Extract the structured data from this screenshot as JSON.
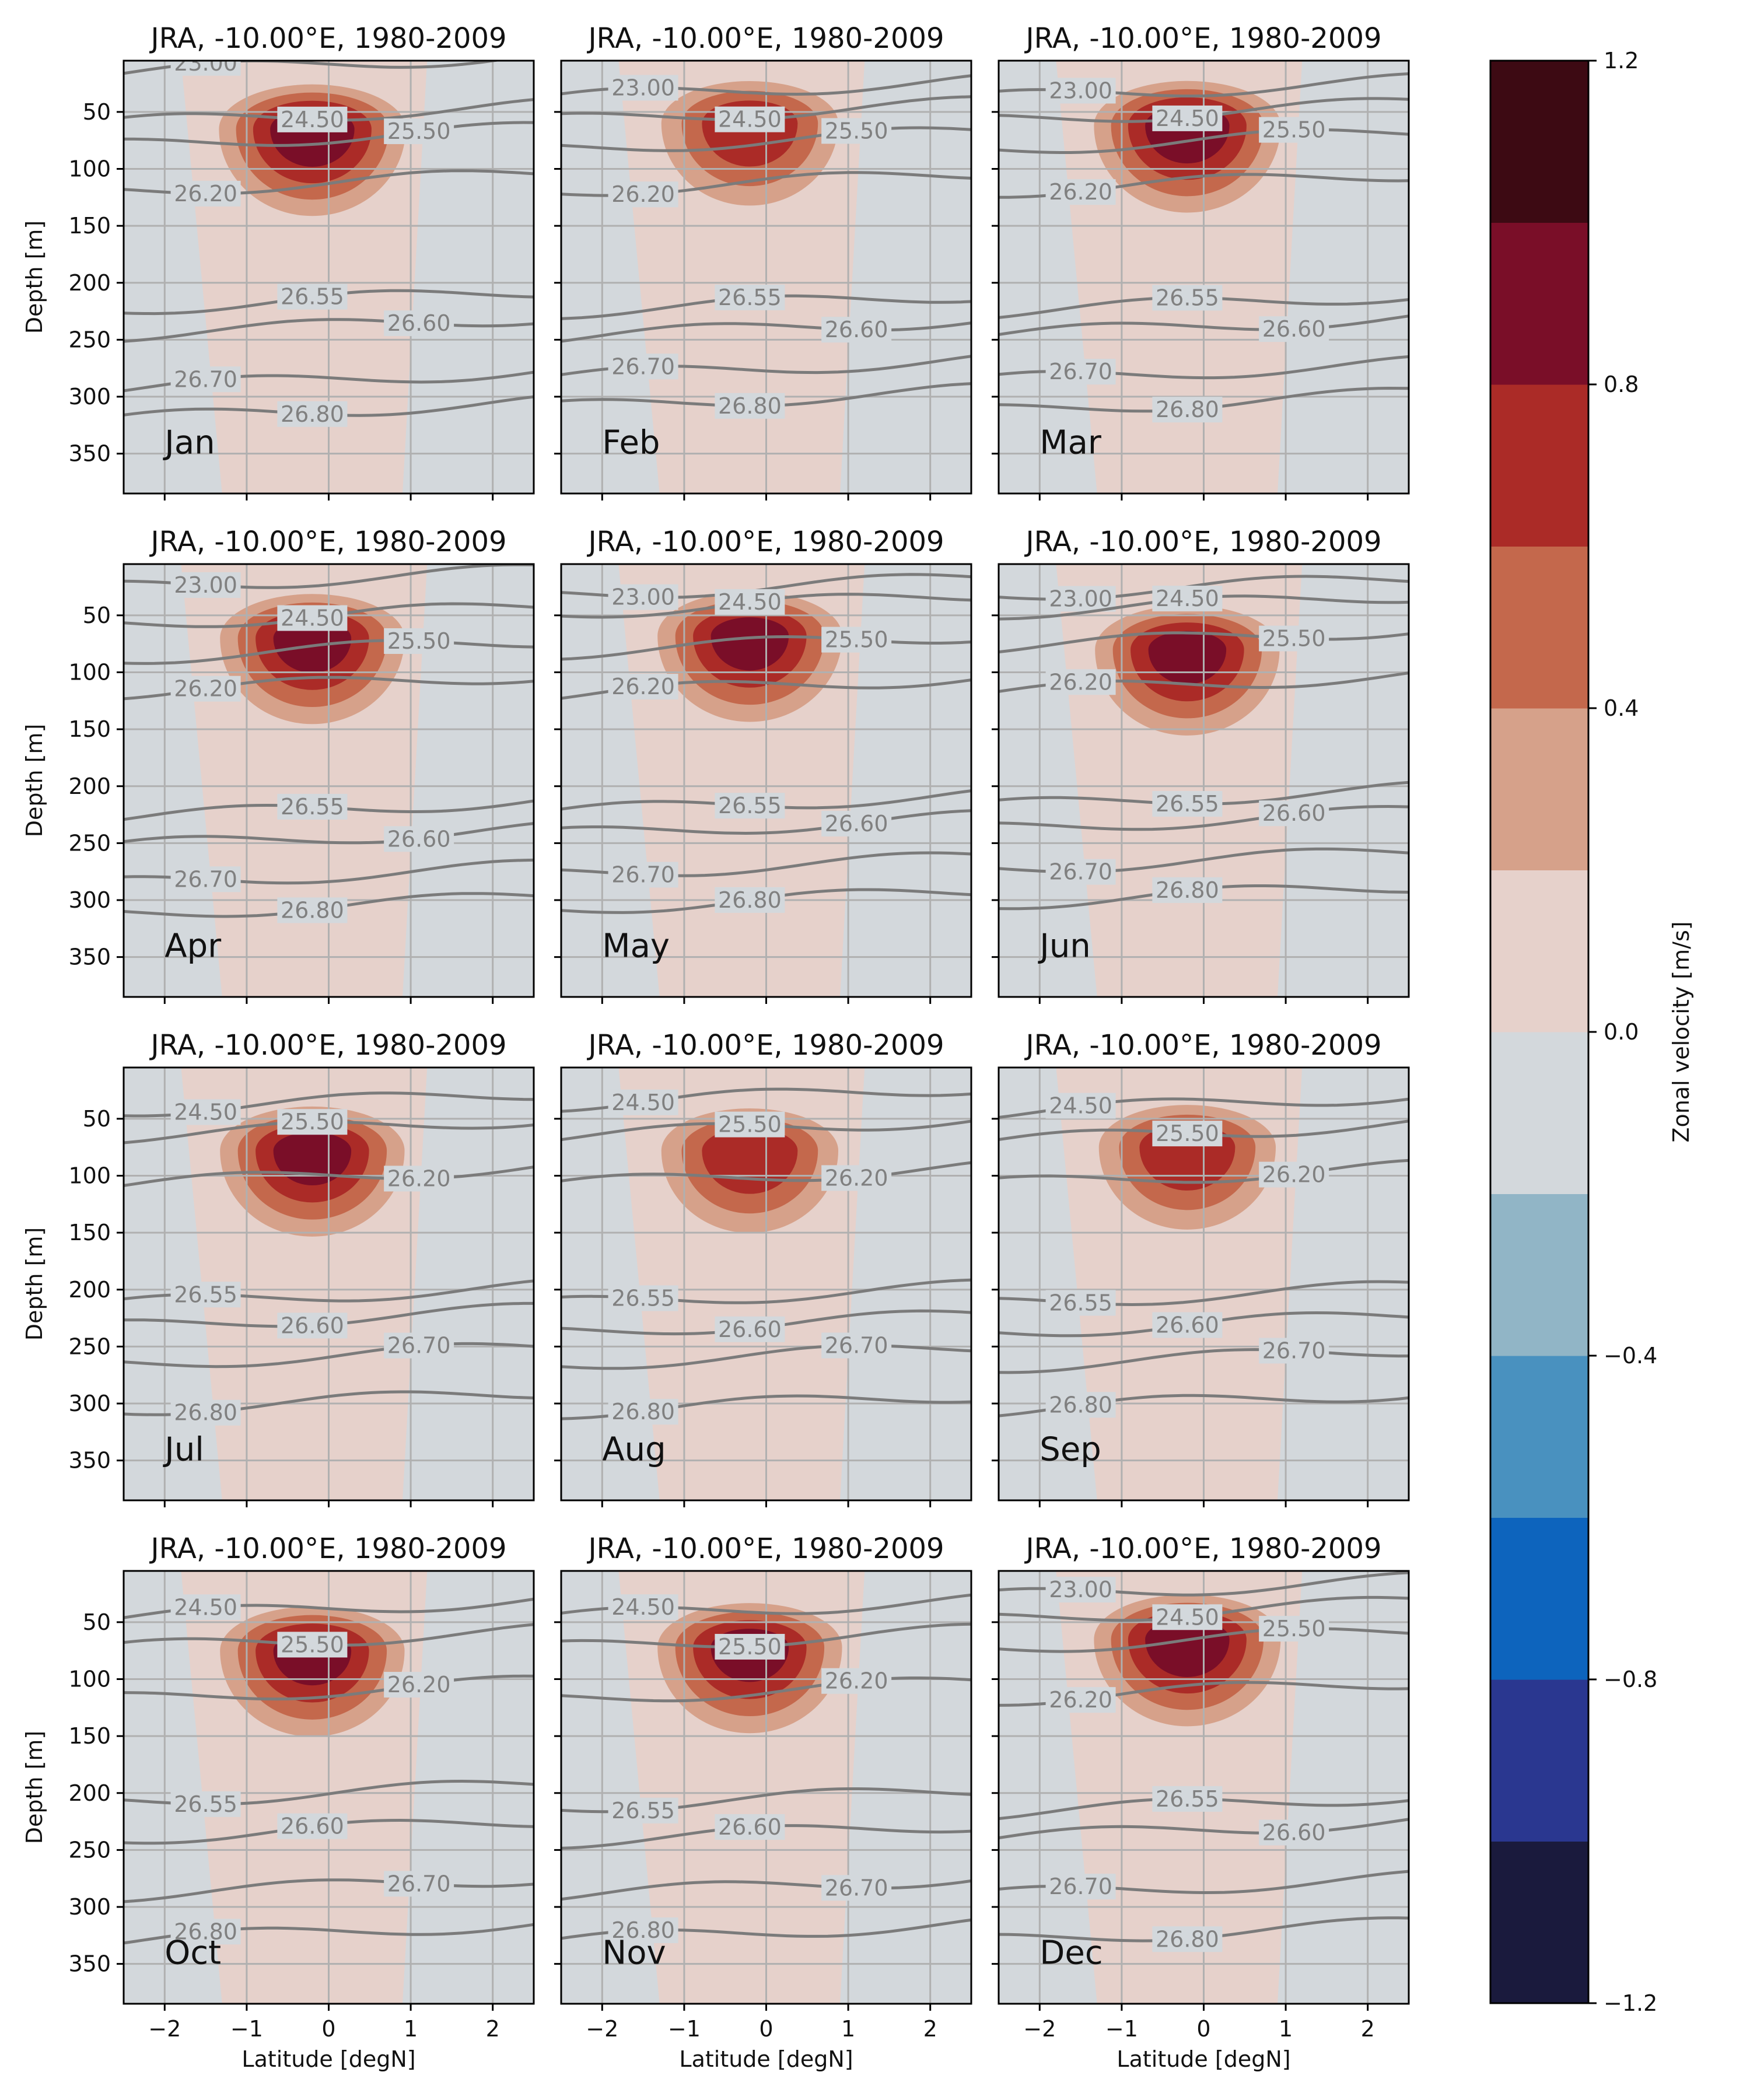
{
  "chart_data": {
    "type": "contourf",
    "figure": "12-panel monthly climatology of zonal velocity (filled contours) with density isolines",
    "panel_title": "JRA,  -10.00°E, 1980-2009",
    "months": [
      "Jan",
      "Feb",
      "Mar",
      "Apr",
      "May",
      "Jun",
      "Jul",
      "Aug",
      "Sep",
      "Oct",
      "Nov",
      "Dec"
    ],
    "xlabel": "Latitude [degN]",
    "ylabel": "Depth [m]",
    "xlim": [
      -2.5,
      2.5
    ],
    "ylim": [
      385,
      5
    ],
    "xticks": [
      "−2",
      "−1",
      "0",
      "1",
      "2"
    ],
    "xtick_values": [
      -2,
      -1,
      0,
      1,
      2
    ],
    "yticks": [
      "50",
      "100",
      "150",
      "200",
      "250",
      "300",
      "350"
    ],
    "ytick_values": [
      50,
      100,
      150,
      200,
      250,
      300,
      350
    ],
    "grid": true,
    "colorbar": {
      "label": "Zonal velocity [m/s]",
      "levels": [
        -1.2,
        -1.0,
        -0.8,
        -0.6,
        -0.4,
        -0.2,
        0.0,
        0.2,
        0.4,
        0.6,
        0.8,
        1.0,
        1.2
      ],
      "tick_values": [
        -1.2,
        -0.8,
        -0.4,
        0.0,
        0.4,
        0.8,
        1.2
      ],
      "tick_labels": [
        "−1.2",
        "−0.8",
        "−0.4",
        "0.0",
        "0.4",
        "0.8",
        "1.2"
      ],
      "colors": [
        "#1a1a3d",
        "#2a3790",
        "#0d64bd",
        "#4991bf",
        "#91b5c6",
        "#d3d8dc",
        "#e6d1cb",
        "#d6a18a",
        "#c4684c",
        "#ab2b27",
        "#7a0e28",
        "#3d0a13"
      ]
    },
    "colors": {
      "background": "#d3d8dc",
      "grid": "#b0b0b0",
      "isoline": "#7b7b7b"
    },
    "density_isolines": [
      23.0,
      24.5,
      25.5,
      26.2,
      26.55,
      26.6,
      26.7,
      26.8
    ],
    "undercurrent_core": {
      "latitude": -0.2,
      "depth_by_month": [
        65,
        60,
        62,
        70,
        68,
        80,
        78,
        78,
        75,
        75,
        72,
        65
      ],
      "max_speed_by_month": [
        1.05,
        0.85,
        1.05,
        1.0,
        1.0,
        1.0,
        1.0,
        0.85,
        0.85,
        1.0,
        1.0,
        1.05
      ]
    },
    "panels": [
      {
        "month": "Jan",
        "isolines": [
          {
            "label": "23.00",
            "depth": 8
          },
          {
            "label": "24.50",
            "depth": 52
          },
          {
            "label": "25.50",
            "depth": 72
          },
          {
            "label": "26.20",
            "depth": 112
          },
          {
            "label": "26.55",
            "depth": 215
          },
          {
            "label": "26.60",
            "depth": 238
          },
          {
            "label": "26.70",
            "depth": 285
          },
          {
            "label": "26.80",
            "depth": 312
          }
        ]
      },
      {
        "month": "Feb",
        "isolines": [
          {
            "label": "23.00",
            "depth": 30
          },
          {
            "label": "24.50",
            "depth": 50
          },
          {
            "label": "25.50",
            "depth": 75
          },
          {
            "label": "26.20",
            "depth": 112
          },
          {
            "label": "26.55",
            "depth": 218
          },
          {
            "label": "26.60",
            "depth": 240
          },
          {
            "label": "26.70",
            "depth": 275
          },
          {
            "label": "26.80",
            "depth": 302
          }
        ]
      },
      {
        "month": "Mar",
        "isolines": [
          {
            "label": "23.00",
            "depth": 30
          },
          {
            "label": "24.50",
            "depth": 50
          },
          {
            "label": "25.50",
            "depth": 75
          },
          {
            "label": "26.20",
            "depth": 112
          },
          {
            "label": "26.55",
            "depth": 218
          },
          {
            "label": "26.60",
            "depth": 238
          },
          {
            "label": "26.70",
            "depth": 278
          },
          {
            "label": "26.80",
            "depth": 305
          }
        ]
      },
      {
        "month": "Apr",
        "isolines": [
          {
            "label": "23.00",
            "depth": 18
          },
          {
            "label": "24.50",
            "depth": 50
          },
          {
            "label": "25.50",
            "depth": 80
          },
          {
            "label": "26.20",
            "depth": 110
          },
          {
            "label": "26.55",
            "depth": 220
          },
          {
            "label": "26.60",
            "depth": 245
          },
          {
            "label": "26.70",
            "depth": 278
          },
          {
            "label": "26.80",
            "depth": 305
          }
        ]
      },
      {
        "month": "May",
        "isolines": [
          {
            "label": "23.00",
            "depth": 25
          },
          {
            "label": "24.50",
            "depth": 40
          },
          {
            "label": "25.50",
            "depth": 75
          },
          {
            "label": "26.20",
            "depth": 112
          },
          {
            "label": "26.55",
            "depth": 215
          },
          {
            "label": "26.60",
            "depth": 235
          },
          {
            "label": "26.70",
            "depth": 270
          },
          {
            "label": "26.80",
            "depth": 300
          }
        ]
      },
      {
        "month": "Jun",
        "isolines": [
          {
            "label": "23.00",
            "depth": 25
          },
          {
            "label": "24.50",
            "depth": 40
          },
          {
            "label": "25.50",
            "depth": 70
          },
          {
            "label": "26.20",
            "depth": 110
          },
          {
            "label": "26.55",
            "depth": 210
          },
          {
            "label": "26.60",
            "depth": 230
          },
          {
            "label": "26.70",
            "depth": 265
          },
          {
            "label": "26.80",
            "depth": 295
          }
        ]
      },
      {
        "month": "Jul",
        "isolines": [
          {
            "label": "24.50",
            "depth": 35
          },
          {
            "label": "25.50",
            "depth": 58
          },
          {
            "label": "26.20",
            "depth": 100
          },
          {
            "label": "26.55",
            "depth": 205
          },
          {
            "label": "26.60",
            "depth": 225
          },
          {
            "label": "26.70",
            "depth": 258
          },
          {
            "label": "26.80",
            "depth": 298
          }
        ]
      },
      {
        "month": "Aug",
        "isolines": [
          {
            "label": "24.50",
            "depth": 30
          },
          {
            "label": "25.50",
            "depth": 58
          },
          {
            "label": "26.20",
            "depth": 100
          },
          {
            "label": "26.55",
            "depth": 205
          },
          {
            "label": "26.60",
            "depth": 230
          },
          {
            "label": "26.70",
            "depth": 258
          },
          {
            "label": "26.80",
            "depth": 300
          }
        ]
      },
      {
        "month": "Sep",
        "isolines": [
          {
            "label": "24.50",
            "depth": 37
          },
          {
            "label": "25.50",
            "depth": 62
          },
          {
            "label": "26.20",
            "depth": 100
          },
          {
            "label": "26.55",
            "depth": 205
          },
          {
            "label": "26.60",
            "depth": 230
          },
          {
            "label": "26.70",
            "depth": 260
          },
          {
            "label": "26.80",
            "depth": 298
          }
        ]
      },
      {
        "month": "Oct",
        "isolines": [
          {
            "label": "24.50",
            "depth": 38
          },
          {
            "label": "25.50",
            "depth": 65
          },
          {
            "label": "26.20",
            "depth": 110
          },
          {
            "label": "26.55",
            "depth": 200
          },
          {
            "label": "26.60",
            "depth": 232
          },
          {
            "label": "26.70",
            "depth": 282
          },
          {
            "label": "26.80",
            "depth": 322
          }
        ]
      },
      {
        "month": "Nov",
        "isolines": [
          {
            "label": "24.50",
            "depth": 38
          },
          {
            "label": "25.50",
            "depth": 65
          },
          {
            "label": "26.20",
            "depth": 110
          },
          {
            "label": "26.55",
            "depth": 205
          },
          {
            "label": "26.60",
            "depth": 235
          },
          {
            "label": "26.70",
            "depth": 282
          },
          {
            "label": "26.80",
            "depth": 322
          }
        ]
      },
      {
        "month": "Dec",
        "isolines": [
          {
            "label": "23.00",
            "depth": 20
          },
          {
            "label": "24.50",
            "depth": 40
          },
          {
            "label": "25.50",
            "depth": 65
          },
          {
            "label": "26.20",
            "depth": 110
          },
          {
            "label": "26.55",
            "depth": 210
          },
          {
            "label": "26.60",
            "depth": 232
          },
          {
            "label": "26.70",
            "depth": 282
          },
          {
            "label": "26.80",
            "depth": 322
          }
        ]
      }
    ]
  }
}
